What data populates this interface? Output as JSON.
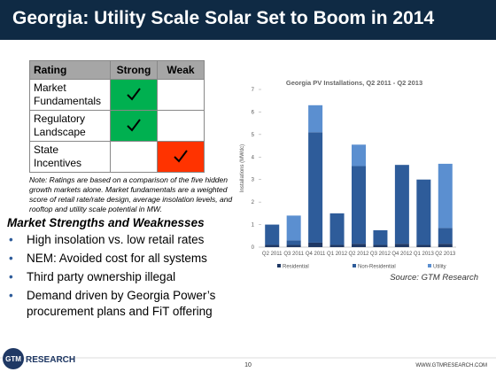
{
  "header": {
    "title": "Georgia: Utility Scale Solar Set to Boom in 2014"
  },
  "table": {
    "columns": [
      "Rating",
      "Strong",
      "Weak"
    ],
    "rows": [
      {
        "label": "Market Fundamentals",
        "rating": "Strong"
      },
      {
        "label": "Regulatory Landscape",
        "rating": "Strong"
      },
      {
        "label": "State Incentives",
        "rating": "Weak"
      }
    ]
  },
  "note": "Note: Ratings are based on a comparison of the five hidden growth markets alone. Market fundamentals are a weighted score of retail rate/rate design, average insolation levels, and rooftop and utility scale potential in MW.",
  "section": {
    "heading": "Market Strengths and Weaknesses",
    "bullets": [
      "High insolation vs. low retail rates",
      "NEM: Avoided cost for all systems",
      "Third party ownership illegal",
      "Demand driven by Georgia Power’s procurement plans and FiT offering"
    ]
  },
  "chart_data": {
    "type": "stacked_bar",
    "title": "Georgia PV Installations, Q2 2011 - Q2 2013",
    "y_label": "Installations (MWdc)",
    "categories": [
      "Q2 2011",
      "Q3 2011",
      "Q4 2011",
      "Q1 2012",
      "Q2 2012",
      "Q3 2012",
      "Q4 2012",
      "Q1 2013",
      "Q2 2013"
    ],
    "series": [
      {
        "name": "Residential",
        "color": "#1f3864",
        "values": [
          0.1,
          0.1,
          0.2,
          0.1,
          0.15,
          0.1,
          0.15,
          0.1,
          0.15
        ]
      },
      {
        "name": "Non-Residential",
        "color": "#2e5c9a",
        "values": [
          0.9,
          0.2,
          4.9,
          1.4,
          3.45,
          0.65,
          3.5,
          2.9,
          0.7
        ]
      },
      {
        "name": "Utility",
        "color": "#5b8fd0",
        "values": [
          0,
          1.1,
          1.2,
          0,
          0.95,
          0,
          0,
          0,
          2.85
        ]
      }
    ],
    "ylim": [
      0,
      7
    ],
    "yticks": [
      0,
      1,
      2,
      3,
      4,
      5,
      6,
      7
    ],
    "grid": false,
    "legend": "bottom"
  },
  "source": "Source: GTM Research",
  "footer": {
    "logo_mark": "GTM",
    "logo_text": "RESEARCH",
    "page": "10",
    "url": "WWW.GTMRESEARCH.COM"
  }
}
